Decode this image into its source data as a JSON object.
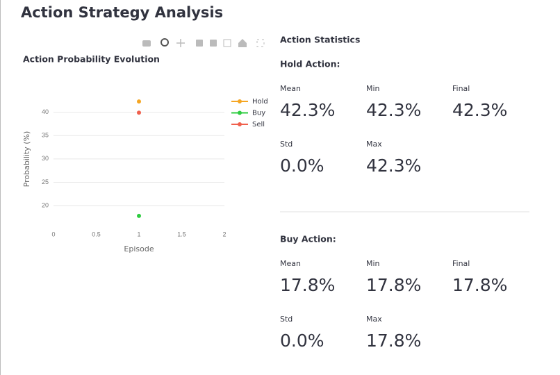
{
  "header": {
    "title": "Action Strategy Analysis"
  },
  "chart_data": {
    "type": "line",
    "title": "Action Probability Evolution",
    "x_label": "Episode",
    "y_label": "Probability (%)",
    "x": [
      1
    ],
    "series": [
      {
        "name": "Hold",
        "color": "#f5a623",
        "values": [
          42.3
        ]
      },
      {
        "name": "Buy",
        "color": "#2ecc40",
        "values": [
          17.8
        ]
      },
      {
        "name": "Sell",
        "color": "#f0604d",
        "values": [
          39.9
        ]
      }
    ],
    "xlim": [
      0,
      2
    ],
    "xticks": [
      0,
      0.5,
      1,
      1.5,
      2
    ],
    "ylim": [
      16,
      45
    ],
    "yticks": [
      20,
      25,
      30,
      35,
      40
    ],
    "grid": true,
    "legend": "right"
  },
  "statistics": {
    "title": "Action Statistics",
    "sections": [
      {
        "title": "Hold Action:",
        "metrics": [
          {
            "label": "Mean",
            "value": "42.3%"
          },
          {
            "label": "Min",
            "value": "42.3%"
          },
          {
            "label": "Final",
            "value": "42.3%"
          },
          {
            "label": "Std",
            "value": "0.0%"
          },
          {
            "label": "Max",
            "value": "42.3%"
          }
        ]
      },
      {
        "title": "Buy Action:",
        "metrics": [
          {
            "label": "Mean",
            "value": "17.8%"
          },
          {
            "label": "Min",
            "value": "17.8%"
          },
          {
            "label": "Final",
            "value": "17.8%"
          },
          {
            "label": "Std",
            "value": "0.0%"
          },
          {
            "label": "Max",
            "value": "17.8%"
          }
        ]
      }
    ]
  }
}
